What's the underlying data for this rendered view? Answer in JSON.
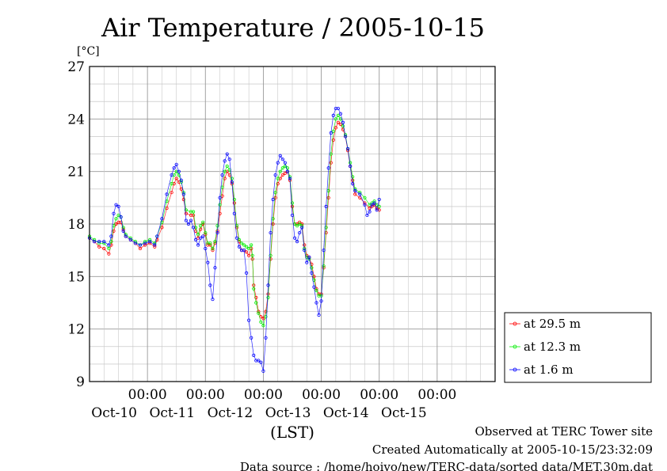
{
  "chart_data": {
    "type": "line",
    "title": "Air Temperature / 2005-10-15",
    "ylabel": "[°C]",
    "xlabel": "(LST)",
    "ylim": [
      9,
      27
    ],
    "xlim": [
      "2005-10-09T00:00",
      "2005-10-15T24:00"
    ],
    "yticks": [
      9,
      12,
      15,
      18,
      21,
      24,
      27
    ],
    "xticks": [
      {
        "time": "00:00",
        "date": "Oct-10"
      },
      {
        "time": "00:00",
        "date": "Oct-11"
      },
      {
        "time": "00:00",
        "date": "Oct-12"
      },
      {
        "time": "00:00",
        "date": "Oct-13"
      },
      {
        "time": "00:00",
        "date": "Oct-14"
      },
      {
        "time": "00:00",
        "date": "Oct-15"
      }
    ],
    "grid": true,
    "legend_position": "right, outside the plot",
    "x_unit": "hours from 2005-10-09 00:00",
    "series": [
      {
        "name": "at 29.5 m",
        "color": "#ff0000",
        "points": [
          [
            0,
            17.2
          ],
          [
            2,
            17.0
          ],
          [
            4,
            16.7
          ],
          [
            6,
            16.6
          ],
          [
            8,
            16.3
          ],
          [
            9,
            16.8
          ],
          [
            10,
            17.6
          ],
          [
            11,
            18.0
          ],
          [
            12,
            18.1
          ],
          [
            13,
            18.1
          ],
          [
            14,
            17.7
          ],
          [
            15,
            17.3
          ],
          [
            17,
            17.1
          ],
          [
            19,
            16.9
          ],
          [
            21,
            16.6
          ],
          [
            23,
            16.8
          ],
          [
            25,
            16.9
          ],
          [
            27,
            16.7
          ],
          [
            28,
            17.1
          ],
          [
            30,
            17.8
          ],
          [
            32,
            18.9
          ],
          [
            34,
            19.8
          ],
          [
            35,
            20.3
          ],
          [
            36,
            20.6
          ],
          [
            37,
            20.4
          ],
          [
            38,
            20.0
          ],
          [
            39,
            19.4
          ],
          [
            40,
            18.6
          ],
          [
            42,
            18.5
          ],
          [
            43,
            18.5
          ],
          [
            44,
            17.6
          ],
          [
            45,
            17.2
          ],
          [
            46,
            17.7
          ],
          [
            47,
            18.0
          ],
          [
            48,
            17.4
          ],
          [
            49,
            16.8
          ],
          [
            50,
            16.8
          ],
          [
            51,
            16.5
          ],
          [
            52,
            16.9
          ],
          [
            53,
            17.6
          ],
          [
            54,
            18.6
          ],
          [
            55,
            19.6
          ],
          [
            56,
            20.6
          ],
          [
            57,
            21.0
          ],
          [
            58,
            20.8
          ],
          [
            59,
            20.3
          ],
          [
            60,
            19.2
          ],
          [
            61,
            17.8
          ],
          [
            62,
            17.0
          ],
          [
            63,
            16.5
          ],
          [
            64,
            16.5
          ],
          [
            65,
            16.4
          ],
          [
            66,
            16.2
          ],
          [
            67,
            16.6
          ],
          [
            67.5,
            16.0
          ],
          [
            68,
            14.5
          ],
          [
            69,
            13.8
          ],
          [
            70,
            13.0
          ],
          [
            71,
            12.7
          ],
          [
            72,
            12.6
          ],
          [
            73,
            13.0
          ],
          [
            74,
            14.0
          ],
          [
            75,
            16.0
          ],
          [
            76,
            18.0
          ],
          [
            77,
            19.5
          ],
          [
            78,
            20.3
          ],
          [
            79,
            20.6
          ],
          [
            80,
            20.8
          ],
          [
            81,
            20.9
          ],
          [
            82,
            21.0
          ],
          [
            83,
            20.5
          ],
          [
            84,
            19.0
          ],
          [
            85,
            18.0
          ],
          [
            86,
            18.0
          ],
          [
            87,
            18.1
          ],
          [
            88,
            18.0
          ],
          [
            89,
            16.8
          ],
          [
            90,
            16.2
          ],
          [
            91,
            16.1
          ],
          [
            92,
            15.7
          ],
          [
            93,
            15.0
          ],
          [
            94,
            14.3
          ],
          [
            95,
            14.0
          ],
          [
            96,
            14.0
          ],
          [
            97,
            15.5
          ],
          [
            98,
            17.5
          ],
          [
            99,
            19.5
          ],
          [
            100,
            21.5
          ],
          [
            101,
            22.8
          ],
          [
            102,
            23.5
          ],
          [
            103,
            23.8
          ],
          [
            104,
            23.7
          ],
          [
            105,
            23.4
          ],
          [
            106,
            23.0
          ],
          [
            107,
            22.2
          ],
          [
            108,
            21.3
          ],
          [
            109,
            20.5
          ],
          [
            110,
            19.7
          ],
          [
            112,
            19.5
          ],
          [
            114,
            19.2
          ],
          [
            116,
            18.9
          ],
          [
            117,
            19.0
          ],
          [
            118,
            19.1
          ],
          [
            119,
            18.9
          ],
          [
            120,
            18.8
          ]
        ]
      },
      {
        "name": "at 12.3 m",
        "color": "#00ee00",
        "points": [
          [
            0,
            17.3
          ],
          [
            2,
            17.1
          ],
          [
            4,
            16.9
          ],
          [
            6,
            16.9
          ],
          [
            8,
            16.6
          ],
          [
            9,
            17.0
          ],
          [
            10,
            17.9
          ],
          [
            11,
            18.3
          ],
          [
            12,
            18.5
          ],
          [
            13,
            18.4
          ],
          [
            14,
            17.8
          ],
          [
            15,
            17.4
          ],
          [
            17,
            17.2
          ],
          [
            19,
            17.0
          ],
          [
            21,
            16.8
          ],
          [
            23,
            17.0
          ],
          [
            25,
            17.1
          ],
          [
            27,
            16.9
          ],
          [
            28,
            17.3
          ],
          [
            30,
            18.1
          ],
          [
            32,
            19.3
          ],
          [
            34,
            20.3
          ],
          [
            35,
            20.8
          ],
          [
            36,
            21.0
          ],
          [
            37,
            20.8
          ],
          [
            38,
            20.4
          ],
          [
            39,
            19.8
          ],
          [
            40,
            18.8
          ],
          [
            42,
            18.7
          ],
          [
            43,
            18.7
          ],
          [
            44,
            17.8
          ],
          [
            45,
            17.4
          ],
          [
            46,
            17.9
          ],
          [
            47,
            18.1
          ],
          [
            48,
            17.5
          ],
          [
            49,
            16.9
          ],
          [
            50,
            16.9
          ],
          [
            51,
            16.6
          ],
          [
            52,
            17.0
          ],
          [
            53,
            17.9
          ],
          [
            54,
            19.1
          ],
          [
            55,
            20.1
          ],
          [
            56,
            21.0
          ],
          [
            57,
            21.3
          ],
          [
            58,
            21.1
          ],
          [
            59,
            20.6
          ],
          [
            60,
            19.4
          ],
          [
            61,
            17.9
          ],
          [
            62,
            17.1
          ],
          [
            63,
            16.9
          ],
          [
            64,
            16.8
          ],
          [
            65,
            16.7
          ],
          [
            66,
            16.6
          ],
          [
            67,
            16.8
          ],
          [
            67.5,
            16.2
          ],
          [
            68,
            14.3
          ],
          [
            69,
            13.5
          ],
          [
            70,
            12.9
          ],
          [
            71,
            12.4
          ],
          [
            72,
            12.2
          ],
          [
            73,
            12.7
          ],
          [
            74,
            13.8
          ],
          [
            75,
            16.2
          ],
          [
            76,
            18.3
          ],
          [
            77,
            19.8
          ],
          [
            78,
            20.6
          ],
          [
            79,
            21.0
          ],
          [
            80,
            21.2
          ],
          [
            81,
            21.3
          ],
          [
            82,
            21.2
          ],
          [
            83,
            20.7
          ],
          [
            84,
            19.2
          ],
          [
            85,
            18.0
          ],
          [
            86,
            17.9
          ],
          [
            87,
            18.0
          ],
          [
            88,
            17.9
          ],
          [
            89,
            16.6
          ],
          [
            90,
            16.1
          ],
          [
            91,
            16.0
          ],
          [
            92,
            15.5
          ],
          [
            93,
            14.8
          ],
          [
            94,
            14.2
          ],
          [
            95,
            13.9
          ],
          [
            96,
            13.9
          ],
          [
            97,
            15.6
          ],
          [
            98,
            17.8
          ],
          [
            99,
            19.9
          ],
          [
            100,
            22.0
          ],
          [
            101,
            23.3
          ],
          [
            102,
            24.0
          ],
          [
            103,
            24.2
          ],
          [
            104,
            24.0
          ],
          [
            105,
            23.6
          ],
          [
            106,
            23.1
          ],
          [
            107,
            22.3
          ],
          [
            108,
            21.5
          ],
          [
            109,
            20.7
          ],
          [
            110,
            20.0
          ],
          [
            112,
            19.8
          ],
          [
            114,
            19.5
          ],
          [
            116,
            19.1
          ],
          [
            117,
            19.2
          ],
          [
            118,
            19.3
          ],
          [
            119,
            19.1
          ],
          [
            120,
            19.0
          ]
        ]
      },
      {
        "name": "at 1.6 m",
        "color": "#0000ff",
        "points": [
          [
            0,
            17.2
          ],
          [
            2,
            17.0
          ],
          [
            4,
            17.0
          ],
          [
            6,
            17.0
          ],
          [
            8,
            16.8
          ],
          [
            9,
            17.3
          ],
          [
            10,
            18.6
          ],
          [
            11,
            19.1
          ],
          [
            12,
            19.0
          ],
          [
            13,
            18.4
          ],
          [
            14,
            17.6
          ],
          [
            15,
            17.3
          ],
          [
            17,
            17.1
          ],
          [
            19,
            16.9
          ],
          [
            21,
            16.8
          ],
          [
            23,
            16.9
          ],
          [
            25,
            17.0
          ],
          [
            27,
            16.8
          ],
          [
            28,
            17.3
          ],
          [
            30,
            18.3
          ],
          [
            32,
            19.7
          ],
          [
            34,
            20.8
          ],
          [
            35,
            21.2
          ],
          [
            36,
            21.4
          ],
          [
            37,
            21.0
          ],
          [
            38,
            20.5
          ],
          [
            39,
            19.7
          ],
          [
            40,
            18.2
          ],
          [
            41,
            18.0
          ],
          [
            42,
            18.2
          ],
          [
            43,
            17.8
          ],
          [
            44,
            17.1
          ],
          [
            45,
            16.8
          ],
          [
            46,
            17.2
          ],
          [
            47,
            17.3
          ],
          [
            48,
            16.6
          ],
          [
            49,
            15.8
          ],
          [
            50,
            14.5
          ],
          [
            51,
            13.7
          ],
          [
            52,
            15.5
          ],
          [
            53,
            17.5
          ],
          [
            54,
            19.5
          ],
          [
            55,
            20.8
          ],
          [
            56,
            21.6
          ],
          [
            57,
            22.0
          ],
          [
            58,
            21.7
          ],
          [
            59,
            20.4
          ],
          [
            60,
            18.6
          ],
          [
            61,
            17.2
          ],
          [
            62,
            16.7
          ],
          [
            63,
            16.5
          ],
          [
            64,
            16.5
          ],
          [
            65,
            15.2
          ],
          [
            66,
            12.5
          ],
          [
            67,
            11.5
          ],
          [
            68,
            10.5
          ],
          [
            69,
            10.2
          ],
          [
            70,
            10.2
          ],
          [
            71,
            10.1
          ],
          [
            72,
            9.6
          ],
          [
            73,
            11.5
          ],
          [
            74,
            14.5
          ],
          [
            75,
            17.5
          ],
          [
            76,
            19.4
          ],
          [
            77,
            20.8
          ],
          [
            78,
            21.5
          ],
          [
            79,
            21.9
          ],
          [
            80,
            21.7
          ],
          [
            81,
            21.5
          ],
          [
            82,
            21.0
          ],
          [
            83,
            20.6
          ],
          [
            84,
            18.5
          ],
          [
            85,
            17.2
          ],
          [
            86,
            17.0
          ],
          [
            87,
            17.5
          ],
          [
            88,
            17.8
          ],
          [
            89,
            16.5
          ],
          [
            90,
            15.8
          ],
          [
            91,
            16.1
          ],
          [
            92,
            15.2
          ],
          [
            93,
            14.4
          ],
          [
            94,
            13.5
          ],
          [
            95,
            12.8
          ],
          [
            96,
            13.6
          ],
          [
            97,
            16.5
          ],
          [
            98,
            19.0
          ],
          [
            99,
            21.2
          ],
          [
            100,
            23.2
          ],
          [
            101,
            24.2
          ],
          [
            102,
            24.6
          ],
          [
            103,
            24.6
          ],
          [
            104,
            24.3
          ],
          [
            105,
            23.8
          ],
          [
            106,
            23.0
          ],
          [
            107,
            22.3
          ],
          [
            108,
            21.3
          ],
          [
            109,
            20.3
          ],
          [
            110,
            19.9
          ],
          [
            112,
            19.7
          ],
          [
            114,
            19.1
          ],
          [
            115,
            18.5
          ],
          [
            116,
            18.7
          ],
          [
            117,
            19.1
          ],
          [
            118,
            19.2
          ],
          [
            119,
            18.8
          ],
          [
            120,
            19.4
          ]
        ]
      }
    ]
  },
  "footer": {
    "observed": "Observed at TERC Tower site",
    "created": "Created Automatically at 2005-10-15/23:32:09",
    "source": "Data source : /home/hoivo/new/TERC-data/sorted  data/MET.30m.dat"
  }
}
